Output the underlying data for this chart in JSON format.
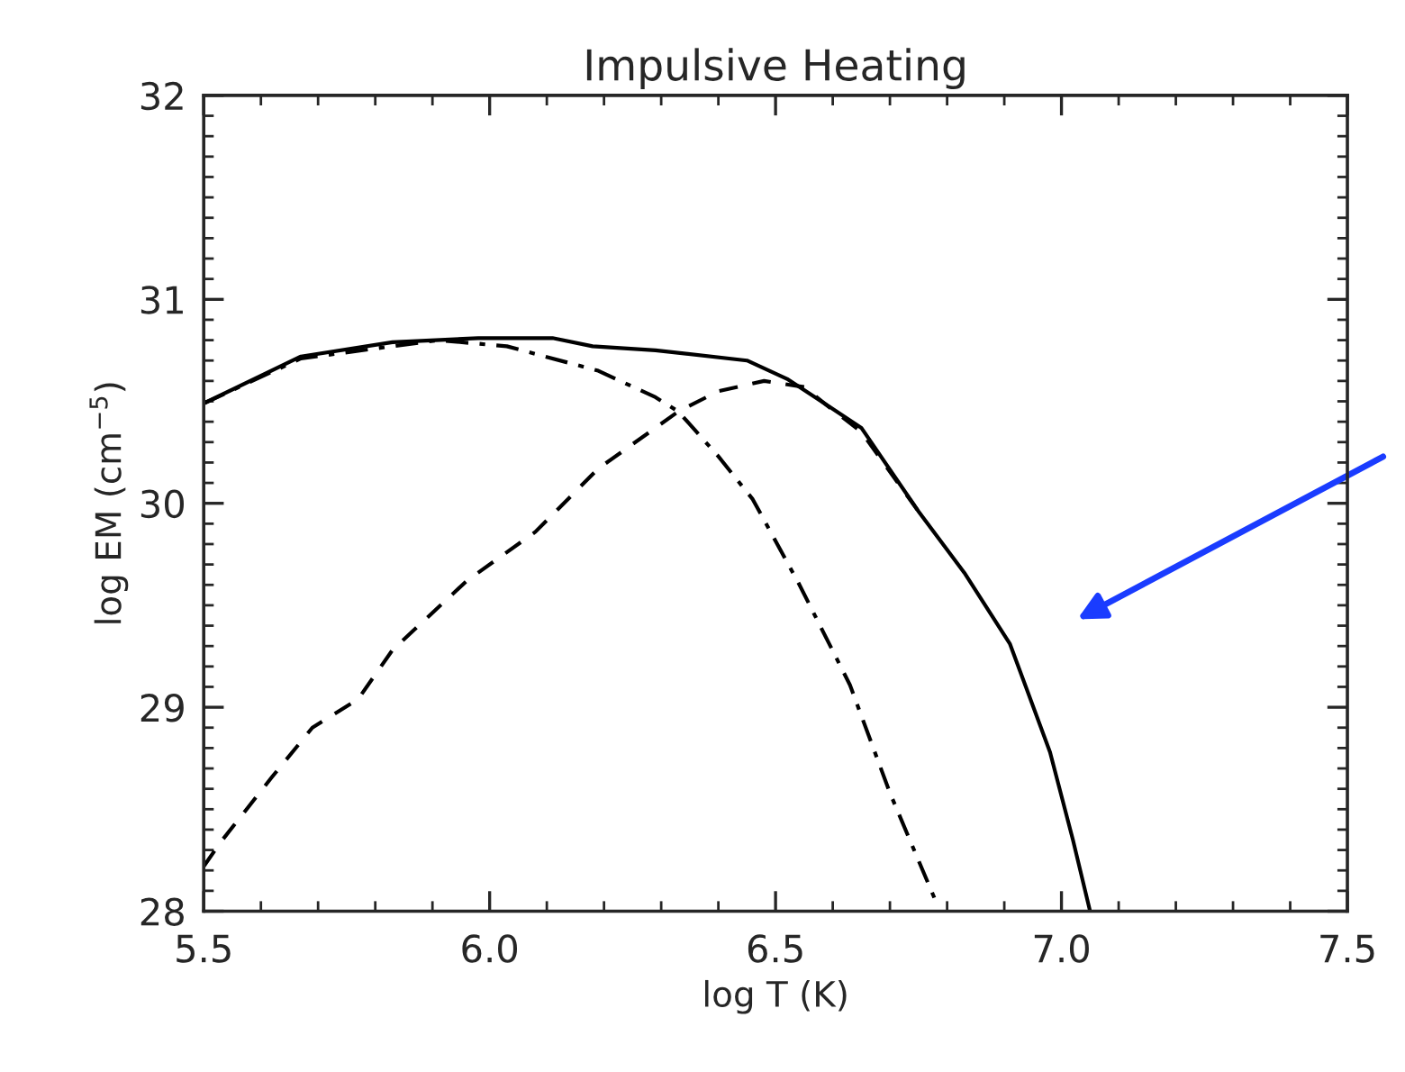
{
  "chart_data": {
    "type": "line",
    "title": "Impulsive Heating",
    "xlabel": "log T (K)",
    "ylabel": "log EM (cm$^{−5}$)",
    "xlim": [
      5.5,
      7.5
    ],
    "xticks": [
      {
        "value": 5.5,
        "label": "5.5"
      },
      {
        "value": 6.0,
        "label": "6.0"
      },
      {
        "value": 6.5,
        "label": "6.5"
      },
      {
        "value": 7.0,
        "label": "7.0"
      },
      {
        "value": 7.5,
        "label": "7.5"
      }
    ],
    "ylim": [
      28,
      32
    ],
    "yticks": [
      28,
      29,
      30,
      31,
      32
    ],
    "grid": false,
    "legend": false,
    "series": [
      {
        "color": "#000000",
        "line_style": "solid",
        "x": [
          5.5,
          5.67,
          5.83,
          5.98,
          6.11,
          6.18,
          6.29,
          6.45,
          6.52,
          6.58,
          6.65,
          6.75,
          6.83,
          6.91,
          6.98,
          7.02,
          7.05
        ],
        "values": [
          30.49,
          30.72,
          30.79,
          30.81,
          30.81,
          30.77,
          30.75,
          30.7,
          30.61,
          30.5,
          30.37,
          29.96,
          29.66,
          29.31,
          28.78,
          28.35,
          28.0
        ]
      },
      {
        "color": "#000000",
        "line_style": "dashed",
        "x": [
          5.5,
          5.53,
          5.62,
          5.69,
          5.77,
          5.83,
          5.96,
          6.08,
          6.19,
          6.33,
          6.4,
          6.48,
          6.55,
          6.59,
          6.65,
          6.75
        ],
        "values": [
          28.22,
          28.34,
          28.66,
          28.9,
          29.04,
          29.28,
          29.62,
          29.86,
          30.17,
          30.45,
          30.55,
          30.6,
          30.57,
          30.48,
          30.35,
          29.96
        ]
      },
      {
        "color": "#000000",
        "line_style": "dashdot",
        "x": [
          5.5,
          5.67,
          5.83,
          5.91,
          6.03,
          6.19,
          6.29,
          6.33,
          6.4,
          6.46,
          6.54,
          6.63,
          6.7,
          6.78
        ],
        "values": [
          30.49,
          30.71,
          30.77,
          30.8,
          30.77,
          30.65,
          30.52,
          30.45,
          30.23,
          30.02,
          29.61,
          29.11,
          28.58,
          28.05
        ]
      }
    ]
  }
}
